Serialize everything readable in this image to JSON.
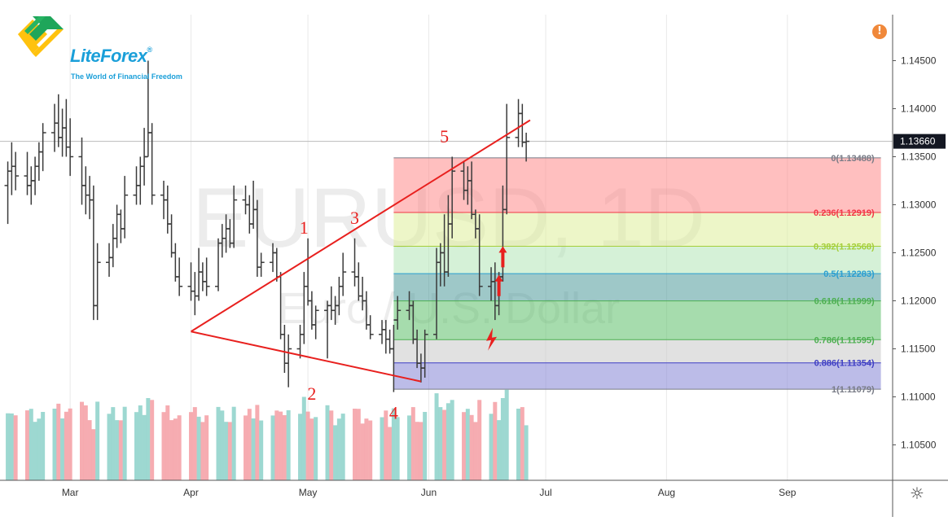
{
  "logo": {
    "brand": "LiteForex",
    "registered": "®",
    "tagline": "The World of Financial Freedom"
  },
  "alert": {
    "glyph": "!"
  },
  "settings": {
    "glyph": "☼"
  },
  "chart_data": {
    "type": "ohlc",
    "watermark": {
      "symbol": "EURUSD, 1D",
      "description": "Euro / U.S. Dollar"
    },
    "y_axis": {
      "ticks": [
        "1.14500",
        "1.14000",
        "1.13500",
        "1.13000",
        "1.12500",
        "1.12000",
        "1.11500",
        "1.11000",
        "1.10500"
      ],
      "ylim": [
        1.1025,
        1.1495
      ],
      "position": "right"
    },
    "x_axis": {
      "ticks": [
        {
          "date": "2019-03-01",
          "label": "Mar"
        },
        {
          "date": "2019-04-01",
          "label": "Apr"
        },
        {
          "date": "2019-05-01",
          "label": "May"
        },
        {
          "date": "2019-06-01",
          "label": "Jun"
        },
        {
          "date": "2019-07-01",
          "label": "Jul"
        },
        {
          "date": "2019-08-01",
          "label": "Aug"
        },
        {
          "date": "2019-09-01",
          "label": "Sep"
        }
      ],
      "xlim": [
        "2019-02-11",
        "2019-09-28"
      ]
    },
    "last_price": {
      "value": 1.1366,
      "label": "1.13660"
    },
    "price_bars": [
      {
        "date": "2019-02-13",
        "o": 1.132,
        "h": 1.1345,
        "l": 1.128,
        "c": 1.1335
      },
      {
        "date": "2019-02-14",
        "o": 1.1335,
        "h": 1.1365,
        "l": 1.131,
        "c": 1.134
      },
      {
        "date": "2019-02-15",
        "o": 1.134,
        "h": 1.1355,
        "l": 1.1315,
        "c": 1.133
      },
      {
        "date": "2019-02-18",
        "o": 1.133,
        "h": 1.1355,
        "l": 1.131,
        "c": 1.132
      },
      {
        "date": "2019-02-19",
        "o": 1.132,
        "h": 1.134,
        "l": 1.13,
        "c": 1.1325
      },
      {
        "date": "2019-02-20",
        "o": 1.1325,
        "h": 1.135,
        "l": 1.131,
        "c": 1.134
      },
      {
        "date": "2019-02-21",
        "o": 1.134,
        "h": 1.1365,
        "l": 1.1325,
        "c": 1.1355
      },
      {
        "date": "2019-02-22",
        "o": 1.1355,
        "h": 1.1385,
        "l": 1.1335,
        "c": 1.1375
      },
      {
        "date": "2019-02-25",
        "o": 1.1375,
        "h": 1.1405,
        "l": 1.1355,
        "c": 1.1385
      },
      {
        "date": "2019-02-26",
        "o": 1.1385,
        "h": 1.1415,
        "l": 1.136,
        "c": 1.137
      },
      {
        "date": "2019-02-27",
        "o": 1.137,
        "h": 1.14,
        "l": 1.135,
        "c": 1.138
      },
      {
        "date": "2019-02-28",
        "o": 1.138,
        "h": 1.141,
        "l": 1.135,
        "c": 1.136
      },
      {
        "date": "2019-03-01",
        "o": 1.136,
        "h": 1.139,
        "l": 1.133,
        "c": 1.135
      },
      {
        "date": "2019-03-04",
        "o": 1.135,
        "h": 1.137,
        "l": 1.13,
        "c": 1.132
      },
      {
        "date": "2019-03-05",
        "o": 1.132,
        "h": 1.134,
        "l": 1.129,
        "c": 1.131
      },
      {
        "date": "2019-03-06",
        "o": 1.131,
        "h": 1.133,
        "l": 1.1285,
        "c": 1.1305
      },
      {
        "date": "2019-03-07",
        "o": 1.1305,
        "h": 1.132,
        "l": 1.118,
        "c": 1.1195
      },
      {
        "date": "2019-03-08",
        "o": 1.1195,
        "h": 1.126,
        "l": 1.118,
        "c": 1.124
      },
      {
        "date": "2019-03-11",
        "o": 1.124,
        "h": 1.126,
        "l": 1.1225,
        "c": 1.1245
      },
      {
        "date": "2019-03-12",
        "o": 1.1245,
        "h": 1.128,
        "l": 1.1235,
        "c": 1.1265
      },
      {
        "date": "2019-03-13",
        "o": 1.1265,
        "h": 1.13,
        "l": 1.1255,
        "c": 1.129
      },
      {
        "date": "2019-03-14",
        "o": 1.129,
        "h": 1.1295,
        "l": 1.126,
        "c": 1.1275
      },
      {
        "date": "2019-03-15",
        "o": 1.1275,
        "h": 1.133,
        "l": 1.1265,
        "c": 1.131
      },
      {
        "date": "2019-03-18",
        "o": 1.131,
        "h": 1.134,
        "l": 1.13,
        "c": 1.132
      },
      {
        "date": "2019-03-19",
        "o": 1.132,
        "h": 1.135,
        "l": 1.13,
        "c": 1.134
      },
      {
        "date": "2019-03-20",
        "o": 1.134,
        "h": 1.138,
        "l": 1.132,
        "c": 1.135
      },
      {
        "date": "2019-03-21",
        "o": 1.135,
        "h": 1.145,
        "l": 1.135,
        "c": 1.1375
      },
      {
        "date": "2019-03-22",
        "o": 1.1375,
        "h": 1.1385,
        "l": 1.13,
        "c": 1.131
      },
      {
        "date": "2019-03-25",
        "o": 1.131,
        "h": 1.1325,
        "l": 1.1285,
        "c": 1.1305
      },
      {
        "date": "2019-03-26",
        "o": 1.1305,
        "h": 1.132,
        "l": 1.127,
        "c": 1.128
      },
      {
        "date": "2019-03-27",
        "o": 1.128,
        "h": 1.129,
        "l": 1.1245,
        "c": 1.125
      },
      {
        "date": "2019-03-28",
        "o": 1.125,
        "h": 1.126,
        "l": 1.122,
        "c": 1.1225
      },
      {
        "date": "2019-03-29",
        "o": 1.1225,
        "h": 1.1245,
        "l": 1.1205,
        "c": 1.1215
      },
      {
        "date": "2019-04-01",
        "o": 1.1215,
        "h": 1.124,
        "l": 1.12,
        "c": 1.121
      },
      {
        "date": "2019-04-02",
        "o": 1.121,
        "h": 1.123,
        "l": 1.1185,
        "c": 1.1205
      },
      {
        "date": "2019-04-03",
        "o": 1.1205,
        "h": 1.1255,
        "l": 1.12,
        "c": 1.123
      },
      {
        "date": "2019-04-04",
        "o": 1.123,
        "h": 1.124,
        "l": 1.121,
        "c": 1.122
      },
      {
        "date": "2019-04-05",
        "o": 1.122,
        "h": 1.1245,
        "l": 1.1205,
        "c": 1.1215
      },
      {
        "date": "2019-04-08",
        "o": 1.1215,
        "h": 1.1265,
        "l": 1.121,
        "c": 1.126
      },
      {
        "date": "2019-04-09",
        "o": 1.126,
        "h": 1.128,
        "l": 1.1245,
        "c": 1.1265
      },
      {
        "date": "2019-04-10",
        "o": 1.1265,
        "h": 1.129,
        "l": 1.125,
        "c": 1.1275
      },
      {
        "date": "2019-04-11",
        "o": 1.1275,
        "h": 1.1285,
        "l": 1.1255,
        "c": 1.126
      },
      {
        "date": "2019-04-12",
        "o": 1.126,
        "h": 1.132,
        "l": 1.1255,
        "c": 1.1305
      },
      {
        "date": "2019-04-15",
        "o": 1.1305,
        "h": 1.132,
        "l": 1.129,
        "c": 1.13
      },
      {
        "date": "2019-04-16",
        "o": 1.13,
        "h": 1.131,
        "l": 1.127,
        "c": 1.128
      },
      {
        "date": "2019-04-17",
        "o": 1.128,
        "h": 1.1325,
        "l": 1.1275,
        "c": 1.1295
      },
      {
        "date": "2019-04-18",
        "o": 1.1295,
        "h": 1.1305,
        "l": 1.1225,
        "c": 1.1235
      },
      {
        "date": "2019-04-19",
        "o": 1.1235,
        "h": 1.125,
        "l": 1.1225,
        "c": 1.124
      },
      {
        "date": "2019-04-22",
        "o": 1.124,
        "h": 1.126,
        "l": 1.123,
        "c": 1.125
      },
      {
        "date": "2019-04-23",
        "o": 1.125,
        "h": 1.1255,
        "l": 1.122,
        "c": 1.1225
      },
      {
        "date": "2019-04-24",
        "o": 1.1225,
        "h": 1.123,
        "l": 1.116,
        "c": 1.1165
      },
      {
        "date": "2019-04-25",
        "o": 1.1165,
        "h": 1.1175,
        "l": 1.1125,
        "c": 1.1135
      },
      {
        "date": "2019-04-26",
        "o": 1.1135,
        "h": 1.1165,
        "l": 1.111,
        "c": 1.115
      },
      {
        "date": "2019-04-29",
        "o": 1.115,
        "h": 1.1175,
        "l": 1.114,
        "c": 1.1165
      },
      {
        "date": "2019-04-30",
        "o": 1.1165,
        "h": 1.123,
        "l": 1.1155,
        "c": 1.1215
      },
      {
        "date": "2019-05-01",
        "o": 1.1215,
        "h": 1.1265,
        "l": 1.1195,
        "c": 1.12
      },
      {
        "date": "2019-05-02",
        "o": 1.12,
        "h": 1.121,
        "l": 1.117,
        "c": 1.1175
      },
      {
        "date": "2019-05-03",
        "o": 1.1175,
        "h": 1.1195,
        "l": 1.116,
        "c": 1.119
      },
      {
        "date": "2019-05-06",
        "o": 1.119,
        "h": 1.12,
        "l": 1.114,
        "c": 1.1195
      },
      {
        "date": "2019-05-07",
        "o": 1.1195,
        "h": 1.1215,
        "l": 1.118,
        "c": 1.119
      },
      {
        "date": "2019-05-08",
        "o": 1.119,
        "h": 1.1205,
        "l": 1.1175,
        "c": 1.1195
      },
      {
        "date": "2019-05-09",
        "o": 1.1195,
        "h": 1.1225,
        "l": 1.1185,
        "c": 1.1215
      },
      {
        "date": "2019-05-10",
        "o": 1.1215,
        "h": 1.125,
        "l": 1.1205,
        "c": 1.123
      },
      {
        "date": "2019-05-13",
        "o": 1.123,
        "h": 1.1265,
        "l": 1.1215,
        "c": 1.1225
      },
      {
        "date": "2019-05-14",
        "o": 1.1225,
        "h": 1.124,
        "l": 1.12,
        "c": 1.1205
      },
      {
        "date": "2019-05-15",
        "o": 1.1205,
        "h": 1.1225,
        "l": 1.119,
        "c": 1.12
      },
      {
        "date": "2019-05-16",
        "o": 1.12,
        "h": 1.121,
        "l": 1.117,
        "c": 1.1175
      },
      {
        "date": "2019-05-17",
        "o": 1.1175,
        "h": 1.1185,
        "l": 1.116,
        "c": 1.1165
      },
      {
        "date": "2019-05-20",
        "o": 1.1165,
        "h": 1.118,
        "l": 1.1155,
        "c": 1.117
      },
      {
        "date": "2019-05-21",
        "o": 1.117,
        "h": 1.118,
        "l": 1.1145,
        "c": 1.116
      },
      {
        "date": "2019-05-22",
        "o": 1.116,
        "h": 1.117,
        "l": 1.1145,
        "c": 1.115
      },
      {
        "date": "2019-05-23",
        "o": 1.115,
        "h": 1.1175,
        "l": 1.1105,
        "c": 1.118
      },
      {
        "date": "2019-05-24",
        "o": 1.118,
        "h": 1.1205,
        "l": 1.117,
        "c": 1.119
      },
      {
        "date": "2019-05-27",
        "o": 1.119,
        "h": 1.121,
        "l": 1.118,
        "c": 1.1195
      },
      {
        "date": "2019-05-28",
        "o": 1.1195,
        "h": 1.12,
        "l": 1.1155,
        "c": 1.116
      },
      {
        "date": "2019-05-29",
        "o": 1.116,
        "h": 1.117,
        "l": 1.113,
        "c": 1.1135
      },
      {
        "date": "2019-05-30",
        "o": 1.1135,
        "h": 1.1145,
        "l": 1.1115,
        "c": 1.113
      },
      {
        "date": "2019-05-31",
        "o": 1.113,
        "h": 1.117,
        "l": 1.112,
        "c": 1.1165
      },
      {
        "date": "2019-06-03",
        "o": 1.1165,
        "h": 1.1255,
        "l": 1.116,
        "c": 1.124
      },
      {
        "date": "2019-06-04",
        "o": 1.124,
        "h": 1.126,
        "l": 1.1215,
        "c": 1.125
      },
      {
        "date": "2019-06-05",
        "o": 1.125,
        "h": 1.129,
        "l": 1.1215,
        "c": 1.123
      },
      {
        "date": "2019-06-06",
        "o": 1.123,
        "h": 1.131,
        "l": 1.1225,
        "c": 1.128
      },
      {
        "date": "2019-06-07",
        "o": 1.128,
        "h": 1.135,
        "l": 1.1265,
        "c": 1.1335
      },
      {
        "date": "2019-06-10",
        "o": 1.1335,
        "h": 1.1345,
        "l": 1.1305,
        "c": 1.1315
      },
      {
        "date": "2019-06-11",
        "o": 1.1315,
        "h": 1.134,
        "l": 1.13,
        "c": 1.1325
      },
      {
        "date": "2019-06-12",
        "o": 1.1325,
        "h": 1.1345,
        "l": 1.1285,
        "c": 1.129
      },
      {
        "date": "2019-06-13",
        "o": 1.129,
        "h": 1.1295,
        "l": 1.1265,
        "c": 1.1275
      },
      {
        "date": "2019-06-14",
        "o": 1.1275,
        "h": 1.129,
        "l": 1.1205,
        "c": 1.1215
      },
      {
        "date": "2019-06-17",
        "o": 1.1215,
        "h": 1.1235,
        "l": 1.12,
        "c": 1.122
      },
      {
        "date": "2019-06-18",
        "o": 1.122,
        "h": 1.124,
        "l": 1.118,
        "c": 1.1195
      },
      {
        "date": "2019-06-19",
        "o": 1.1195,
        "h": 1.123,
        "l": 1.1185,
        "c": 1.1225
      },
      {
        "date": "2019-06-20",
        "o": 1.1225,
        "h": 1.132,
        "l": 1.122,
        "c": 1.1295
      },
      {
        "date": "2019-06-21",
        "o": 1.1295,
        "h": 1.1405,
        "l": 1.129,
        "c": 1.137
      },
      {
        "date": "2019-06-24",
        "o": 1.137,
        "h": 1.141,
        "l": 1.136,
        "c": 1.1395
      },
      {
        "date": "2019-06-25",
        "o": 1.1395,
        "h": 1.1405,
        "l": 1.136,
        "c": 1.1365
      },
      {
        "date": "2019-06-26",
        "o": 1.1365,
        "h": 1.1375,
        "l": 1.1345,
        "c": 1.1366
      }
    ],
    "volume": {
      "colors": {
        "up": "#92d4cc",
        "down": "#f5a3a8"
      }
    },
    "fibonacci": {
      "start_date": "2019-05-23",
      "end_date": "2019-09-25",
      "levels": [
        {
          "ratio": "0",
          "price": 1.13488,
          "label": "0(1.13488)",
          "color": "#787b86"
        },
        {
          "ratio": "0.236",
          "price": 1.12919,
          "label": "0.236(1.12919)",
          "color": "#f23645"
        },
        {
          "ratio": "0.382",
          "price": 1.12568,
          "label": "0.382(1.12568)",
          "color": "#a5cf3a"
        },
        {
          "ratio": "0.5",
          "price": 1.12283,
          "label": "0.5(1.12283)",
          "color": "#2a9ed1"
        },
        {
          "ratio": "0.618",
          "price": 1.11999,
          "label": "0.618(1.11999)",
          "color": "#4caf50"
        },
        {
          "ratio": "0.786",
          "price": 1.11595,
          "label": "0.786(1.11595)",
          "color": "#4caf50"
        },
        {
          "ratio": "0.886",
          "price": 1.11354,
          "label": "0.886(1.11354)",
          "color": "#3f3fc4"
        },
        {
          "ratio": "1",
          "price": 1.11079,
          "label": "1(1.11079)",
          "color": "#787b86"
        }
      ],
      "zone_colors": [
        "#ff8a8a",
        "#dfef9a",
        "#b2e6b6",
        "#4f9a9a",
        "#5cbf6a",
        "#c8c8c8",
        "#8585d6"
      ]
    },
    "triangle": {
      "color": "#e8201e",
      "apex": {
        "date": "2019-04-01",
        "price": 1.1168
      },
      "upper_end": {
        "date": "2019-06-27",
        "price": 1.1388
      },
      "lower_end": {
        "date": "2019-05-30",
        "price": 1.1116
      }
    },
    "wave_labels": [
      {
        "text": "1",
        "date": "2019-04-30",
        "price": 1.127
      },
      {
        "text": "2",
        "date": "2019-05-02",
        "price": 1.1097
      },
      {
        "text": "3",
        "date": "2019-05-13",
        "price": 1.128
      },
      {
        "text": "4",
        "date": "2019-05-23",
        "price": 1.1077
      },
      {
        "text": "5",
        "date": "2019-06-05",
        "price": 1.1365
      }
    ],
    "arrows": [
      {
        "kind": "up",
        "date": "2019-06-19",
        "price": 1.1215
      },
      {
        "kind": "up",
        "date": "2019-06-20",
        "price": 1.1245
      },
      {
        "kind": "bolt",
        "date": "2019-06-17",
        "price": 1.116
      }
    ],
    "colors": {
      "bars": "#3a3a3a",
      "grid": "#e9e9e9",
      "watermark": "rgba(150,150,150,0.18)",
      "last_price_bg": "#131722"
    }
  }
}
